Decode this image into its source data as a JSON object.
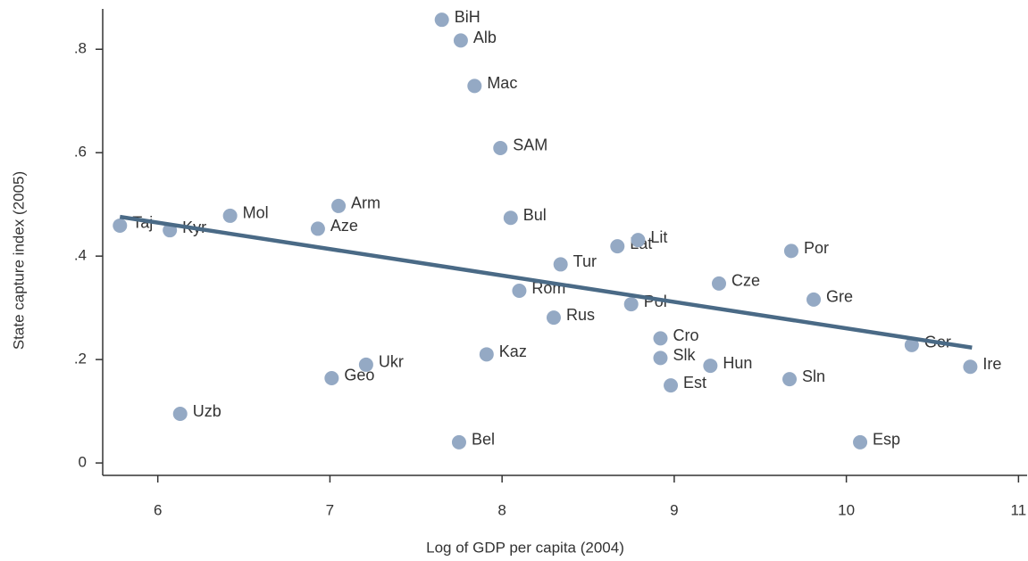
{
  "chart_data": {
    "type": "scatter",
    "xlabel": "Log of GDP per capita (2004)",
    "ylabel": "State capture index (2005)",
    "color": "#94a9c4",
    "trend_color": "#4a6a86",
    "labels": [
      "Taj",
      "Kyr",
      "Uzb",
      "Mol",
      "Arm",
      "Aze",
      "Geo",
      "Ukr",
      "BiH",
      "Alb",
      "Mac",
      "SAM",
      "Bul",
      "Kaz",
      "Bel",
      "Rom",
      "Rus",
      "Tur",
      "Lat",
      "Lit",
      "Pol",
      "Cro",
      "Slk",
      "Est",
      "Hun",
      "Cze",
      "Por",
      "Gre",
      "Sln",
      "Esp",
      "Ger",
      "Ire"
    ],
    "x": [
      5.78,
      6.07,
      6.13,
      6.42,
      7.05,
      6.93,
      7.01,
      7.21,
      7.65,
      7.76,
      7.84,
      7.99,
      8.05,
      7.91,
      7.75,
      8.1,
      8.3,
      8.34,
      8.67,
      8.79,
      8.75,
      8.92,
      8.92,
      8.98,
      9.21,
      9.26,
      9.68,
      9.81,
      9.67,
      10.08,
      10.38,
      10.72
    ],
    "y": [
      0.459,
      0.45,
      0.095,
      0.478,
      0.497,
      0.453,
      0.164,
      0.19,
      0.857,
      0.817,
      0.729,
      0.609,
      0.474,
      0.21,
      0.04,
      0.333,
      0.281,
      0.384,
      0.419,
      0.431,
      0.307,
      0.241,
      0.203,
      0.15,
      0.188,
      0.347,
      0.41,
      0.316,
      0.162,
      0.04,
      0.228,
      0.186
    ],
    "trendline": {
      "x": [
        5.78,
        10.73
      ],
      "y": [
        0.476,
        0.223
      ]
    },
    "xlim": [
      5.68,
      11.05
    ],
    "ylim": [
      -0.024,
      0.878
    ],
    "xticks": [
      6,
      7,
      8,
      9,
      10,
      11
    ],
    "yticks": [
      0,
      {
        "value": 0.2,
        "label": ".2"
      },
      {
        "value": 0.4,
        "label": ".4"
      },
      {
        "value": 0.6,
        "label": ".6"
      },
      {
        "value": 0.8,
        "label": ".8"
      }
    ]
  }
}
